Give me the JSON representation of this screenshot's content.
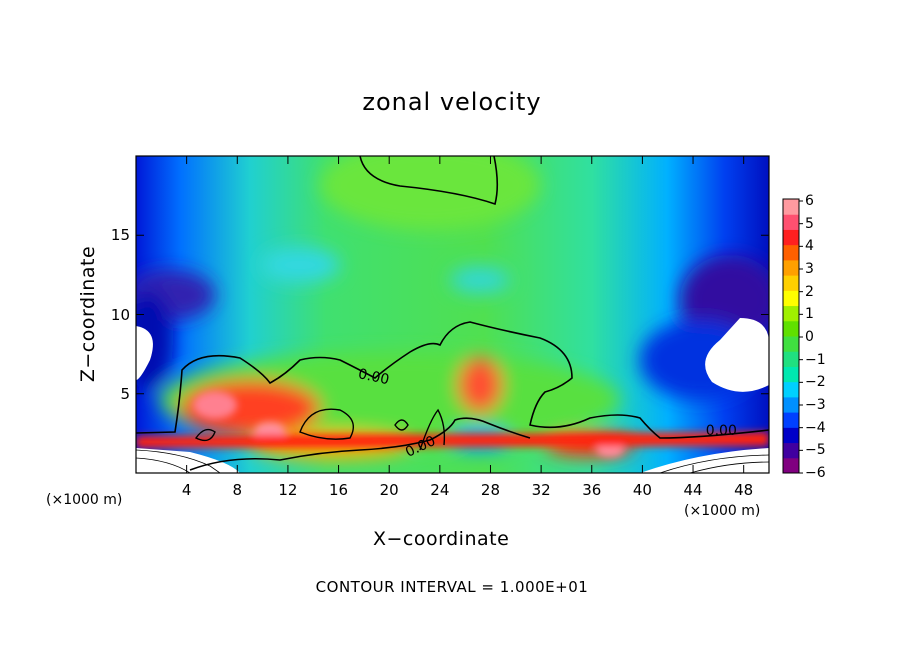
{
  "chart_data": {
    "type": "heatmap",
    "title": "zonal velocity",
    "xlabel": "X−coordinate",
    "ylabel": "Z−coordinate",
    "x_unit": "(×1000 m)",
    "y_unit": "(×1000 m)",
    "footer": "CONTOUR INTERVAL = 1.000E+01",
    "xlim": [
      0,
      50
    ],
    "ylim": [
      0,
      20
    ],
    "x_ticks": [
      {
        "value": 4,
        "label": "4"
      },
      {
        "value": 8,
        "label": "8"
      },
      {
        "value": 12,
        "label": "12"
      },
      {
        "value": 16,
        "label": "16"
      },
      {
        "value": 20,
        "label": "20"
      },
      {
        "value": 24,
        "label": "24"
      },
      {
        "value": 28,
        "label": "28"
      },
      {
        "value": 32,
        "label": "32"
      },
      {
        "value": 36,
        "label": "36"
      },
      {
        "value": 40,
        "label": "40"
      },
      {
        "value": 44,
        "label": "44"
      },
      {
        "value": 48,
        "label": "48"
      }
    ],
    "y_ticks": [
      {
        "value": 5,
        "label": "5"
      },
      {
        "value": 10,
        "label": "10"
      },
      {
        "value": 15,
        "label": "15"
      }
    ],
    "contour_labels": [
      {
        "x": 17.5,
        "y": 6.0,
        "text": "0.00"
      },
      {
        "x": 21.5,
        "y": 1.0,
        "text": "0.00"
      },
      {
        "x": 45.0,
        "y": 2.4,
        "text": "0.00"
      }
    ],
    "colorbar": {
      "min": -6,
      "max": 6,
      "labels": [
        "6",
        "5",
        "4",
        "3",
        "2",
        "1",
        "0",
        "−1",
        "−2",
        "−3",
        "−4",
        "−5",
        "−6"
      ],
      "colors": [
        "#800080",
        "#4000a0",
        "#0000c8",
        "#0040ff",
        "#0090ff",
        "#00d0ff",
        "#00e8b0",
        "#20e080",
        "#40e040",
        "#60e000",
        "#a0f000",
        "#ffff00",
        "#ffd000",
        "#ffa000",
        "#ff6000",
        "#ff2020",
        "#ff5070",
        "#ff9aa0"
      ]
    }
  }
}
